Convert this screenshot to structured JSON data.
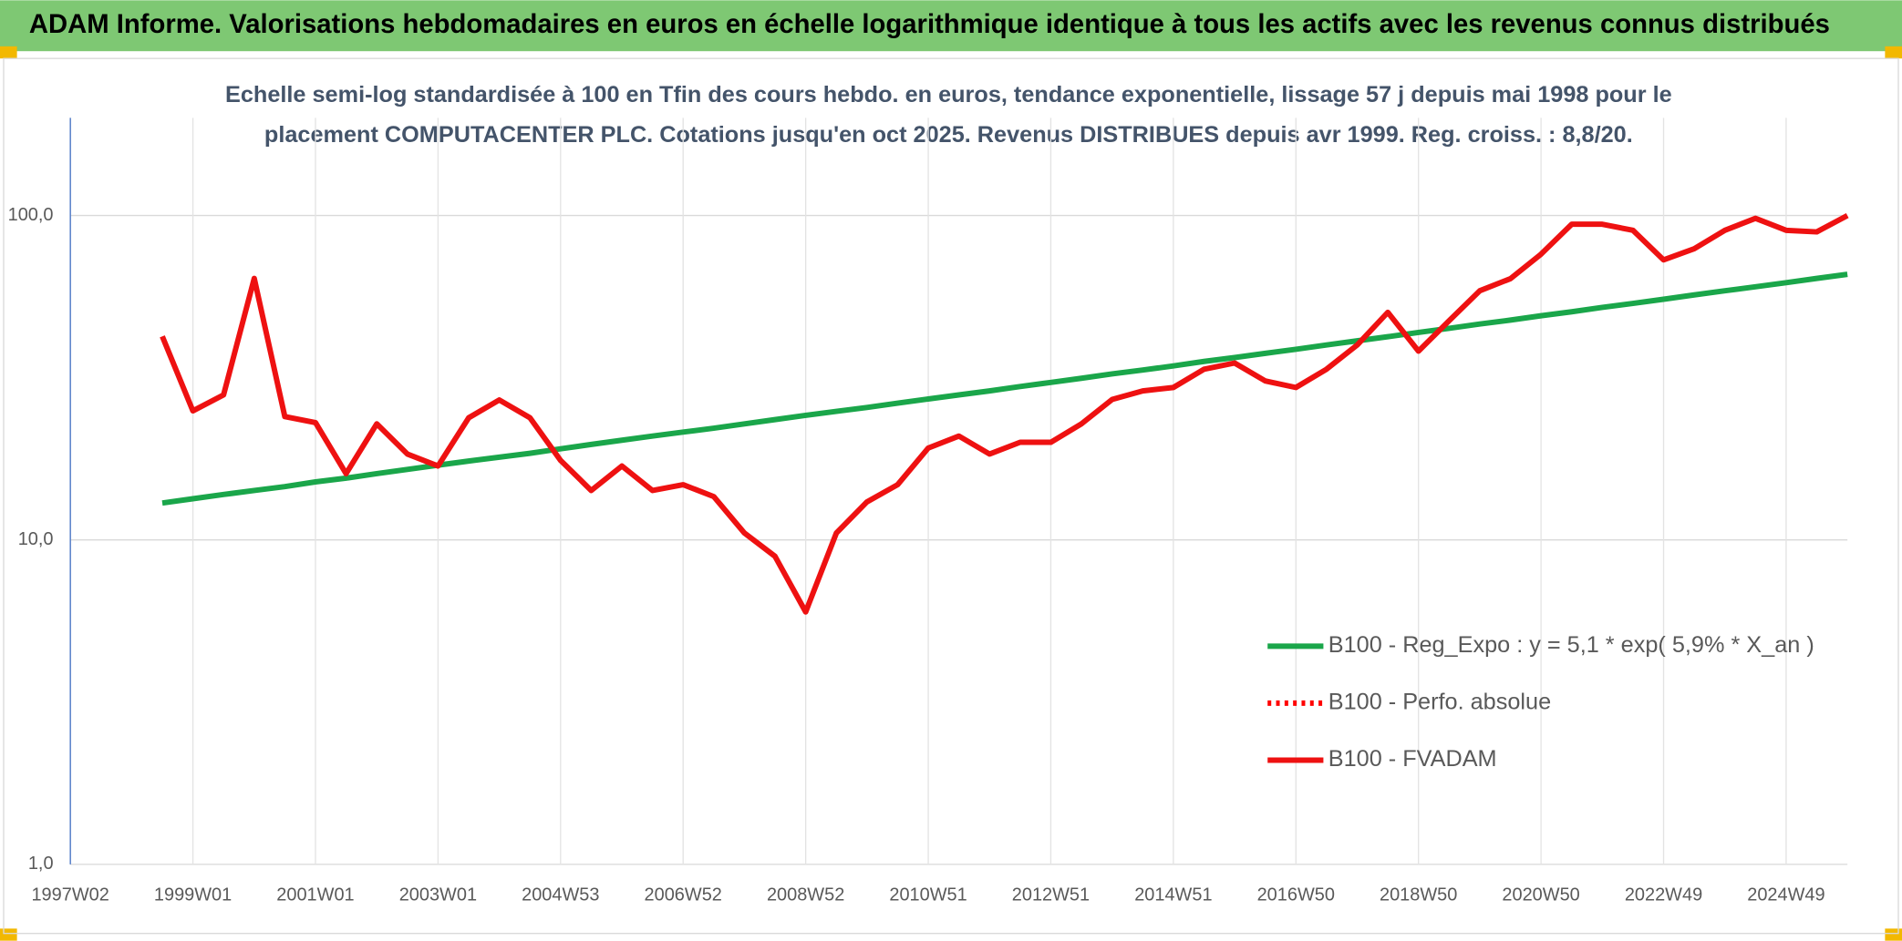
{
  "header": {
    "title": "ADAM Informe. Valorisations hebdomadaires en euros en échelle logarithmique identique à tous les actifs avec les revenus connus distribués"
  },
  "chart_data": {
    "type": "line",
    "title": [
      "Echelle semi-log standardisée à 100 en Tfin des cours hebdo. en euros, tendance exponentielle, lissage 57 j depuis mai 1998 pour le",
      "placement COMPUTACENTER PLC. Cotations jusqu'en oct 2025. Revenus DISTRIBUES depuis avr 1999. Reg. croiss. : 8,8/20."
    ],
    "log_scale": true,
    "grid": true,
    "legend": "right",
    "ylim": [
      1,
      200
    ],
    "yticks": [
      {
        "value": 1,
        "label": "1,0"
      },
      {
        "value": 10,
        "label": "10,0"
      },
      {
        "value": 100,
        "label": "100,0"
      }
    ],
    "categories": [
      "1997W02",
      null,
      null,
      null,
      "1999W01",
      null,
      null,
      null,
      "2001W01",
      null,
      null,
      null,
      "2003W01",
      null,
      null,
      null,
      "2004W53",
      null,
      null,
      null,
      "2006W52",
      null,
      null,
      null,
      "2008W52",
      null,
      null,
      null,
      "2010W51",
      null,
      null,
      null,
      "2012W51",
      null,
      null,
      null,
      "2014W51",
      null,
      null,
      null,
      "2016W50",
      null,
      null,
      null,
      "2018W50",
      null,
      null,
      null,
      "2020W50",
      null,
      null,
      null,
      "2022W49",
      null,
      null,
      null,
      "2024W49",
      null,
      null
    ],
    "series": [
      {
        "name": "B100 - Reg_Expo : y = 5,1 * exp( 5,9% *  X_an )",
        "color": "#1aa64a",
        "dash": "solid",
        "values": [
          null,
          null,
          null,
          13.0,
          13.4,
          13.8,
          14.2,
          14.6,
          15.1,
          15.5,
          16.0,
          16.5,
          17.0,
          17.5,
          18.0,
          18.5,
          19.1,
          19.7,
          20.3,
          20.9,
          21.5,
          22.1,
          22.8,
          23.5,
          24.2,
          24.9,
          25.6,
          26.4,
          27.2,
          28.0,
          28.8,
          29.7,
          30.6,
          31.5,
          32.5,
          33.4,
          34.4,
          35.5,
          36.5,
          37.6,
          38.7,
          39.9,
          41.1,
          42.3,
          43.6,
          44.9,
          46.3,
          47.6,
          49.1,
          50.5,
          52.1,
          53.6,
          55.2,
          56.9,
          58.6,
          60.3,
          62.1,
          64.0,
          65.9
        ]
      },
      {
        "name": "B100 - Perfo. absolue",
        "color": "#ff0000",
        "dash": "dotted",
        "values": [
          null,
          null,
          null,
          null,
          null,
          null,
          null,
          null,
          null,
          null,
          null,
          null,
          null,
          null,
          null,
          null,
          null,
          null,
          null,
          null,
          null,
          null,
          null,
          null,
          null,
          null,
          null,
          null,
          null,
          null,
          null,
          null,
          null,
          null,
          null,
          null,
          null,
          null,
          null,
          null,
          null,
          null,
          null,
          null,
          null,
          null,
          null,
          null,
          null,
          null,
          null,
          null,
          null,
          null,
          null,
          null,
          null,
          null,
          null
        ]
      },
      {
        "name": "B100 - FVADAM",
        "color": "#ee1111",
        "dash": "solid",
        "values": [
          null,
          null,
          null,
          42.4,
          25,
          28,
          64,
          24,
          23,
          16,
          22.8,
          18.4,
          16.9,
          23.8,
          27,
          23.8,
          17.6,
          14.2,
          16.9,
          14.2,
          14.8,
          13.6,
          10.5,
          8.9,
          6.0,
          10.5,
          13.1,
          14.8,
          19.2,
          20.9,
          18.4,
          20.0,
          20.0,
          22.8,
          27.1,
          28.8,
          29.5,
          33.6,
          35.1,
          30.9,
          29.5,
          33.6,
          39.9,
          50.3,
          38.2,
          47.4,
          58.6,
          63.9,
          76,
          94,
          94,
          90,
          73,
          79,
          90,
          98,
          90,
          89,
          100
        ]
      }
    ]
  }
}
